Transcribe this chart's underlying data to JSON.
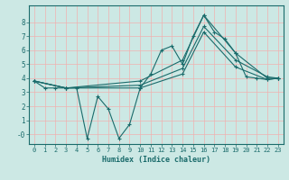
{
  "xlabel": "Humidex (Indice chaleur)",
  "background_color": "#cce8e4",
  "grid_color": "#f0b0b0",
  "line_color": "#1a6b6b",
  "xlim": [
    -0.5,
    23.5
  ],
  "ylim": [
    -0.7,
    9.2
  ],
  "yticks": [
    0,
    1,
    2,
    3,
    4,
    5,
    6,
    7,
    8
  ],
  "ytick_labels": [
    "-0",
    "1",
    "2",
    "3",
    "4",
    "5",
    "6",
    "7",
    "8"
  ],
  "xticks": [
    0,
    1,
    2,
    3,
    4,
    5,
    6,
    7,
    8,
    9,
    10,
    11,
    12,
    13,
    14,
    15,
    16,
    17,
    18,
    19,
    20,
    21,
    22,
    23
  ],
  "series1": {
    "x": [
      0,
      1,
      2,
      3,
      4,
      5,
      6,
      7,
      8,
      9,
      10,
      11,
      12,
      13,
      14,
      15,
      16,
      17,
      18,
      19,
      20,
      21,
      22,
      23
    ],
    "y": [
      3.8,
      3.3,
      3.3,
      3.3,
      3.3,
      -0.3,
      2.7,
      1.8,
      -0.3,
      0.7,
      3.3,
      4.3,
      6.0,
      6.3,
      5.0,
      7.0,
      8.5,
      7.3,
      6.8,
      5.8,
      4.1,
      4.0,
      3.9,
      4.0
    ]
  },
  "series2": {
    "x": [
      0,
      3,
      10,
      14,
      16,
      19,
      22,
      23
    ],
    "y": [
      3.8,
      3.3,
      3.3,
      4.3,
      7.3,
      4.8,
      3.9,
      4.0
    ]
  },
  "series3": {
    "x": [
      0,
      3,
      10,
      14,
      16,
      19,
      22,
      23
    ],
    "y": [
      3.8,
      3.3,
      3.5,
      4.7,
      7.7,
      5.3,
      4.1,
      4.0
    ]
  },
  "series4": {
    "x": [
      0,
      3,
      10,
      14,
      16,
      19,
      22,
      23
    ],
    "y": [
      3.8,
      3.3,
      3.8,
      5.3,
      8.5,
      5.8,
      4.0,
      4.0
    ]
  }
}
